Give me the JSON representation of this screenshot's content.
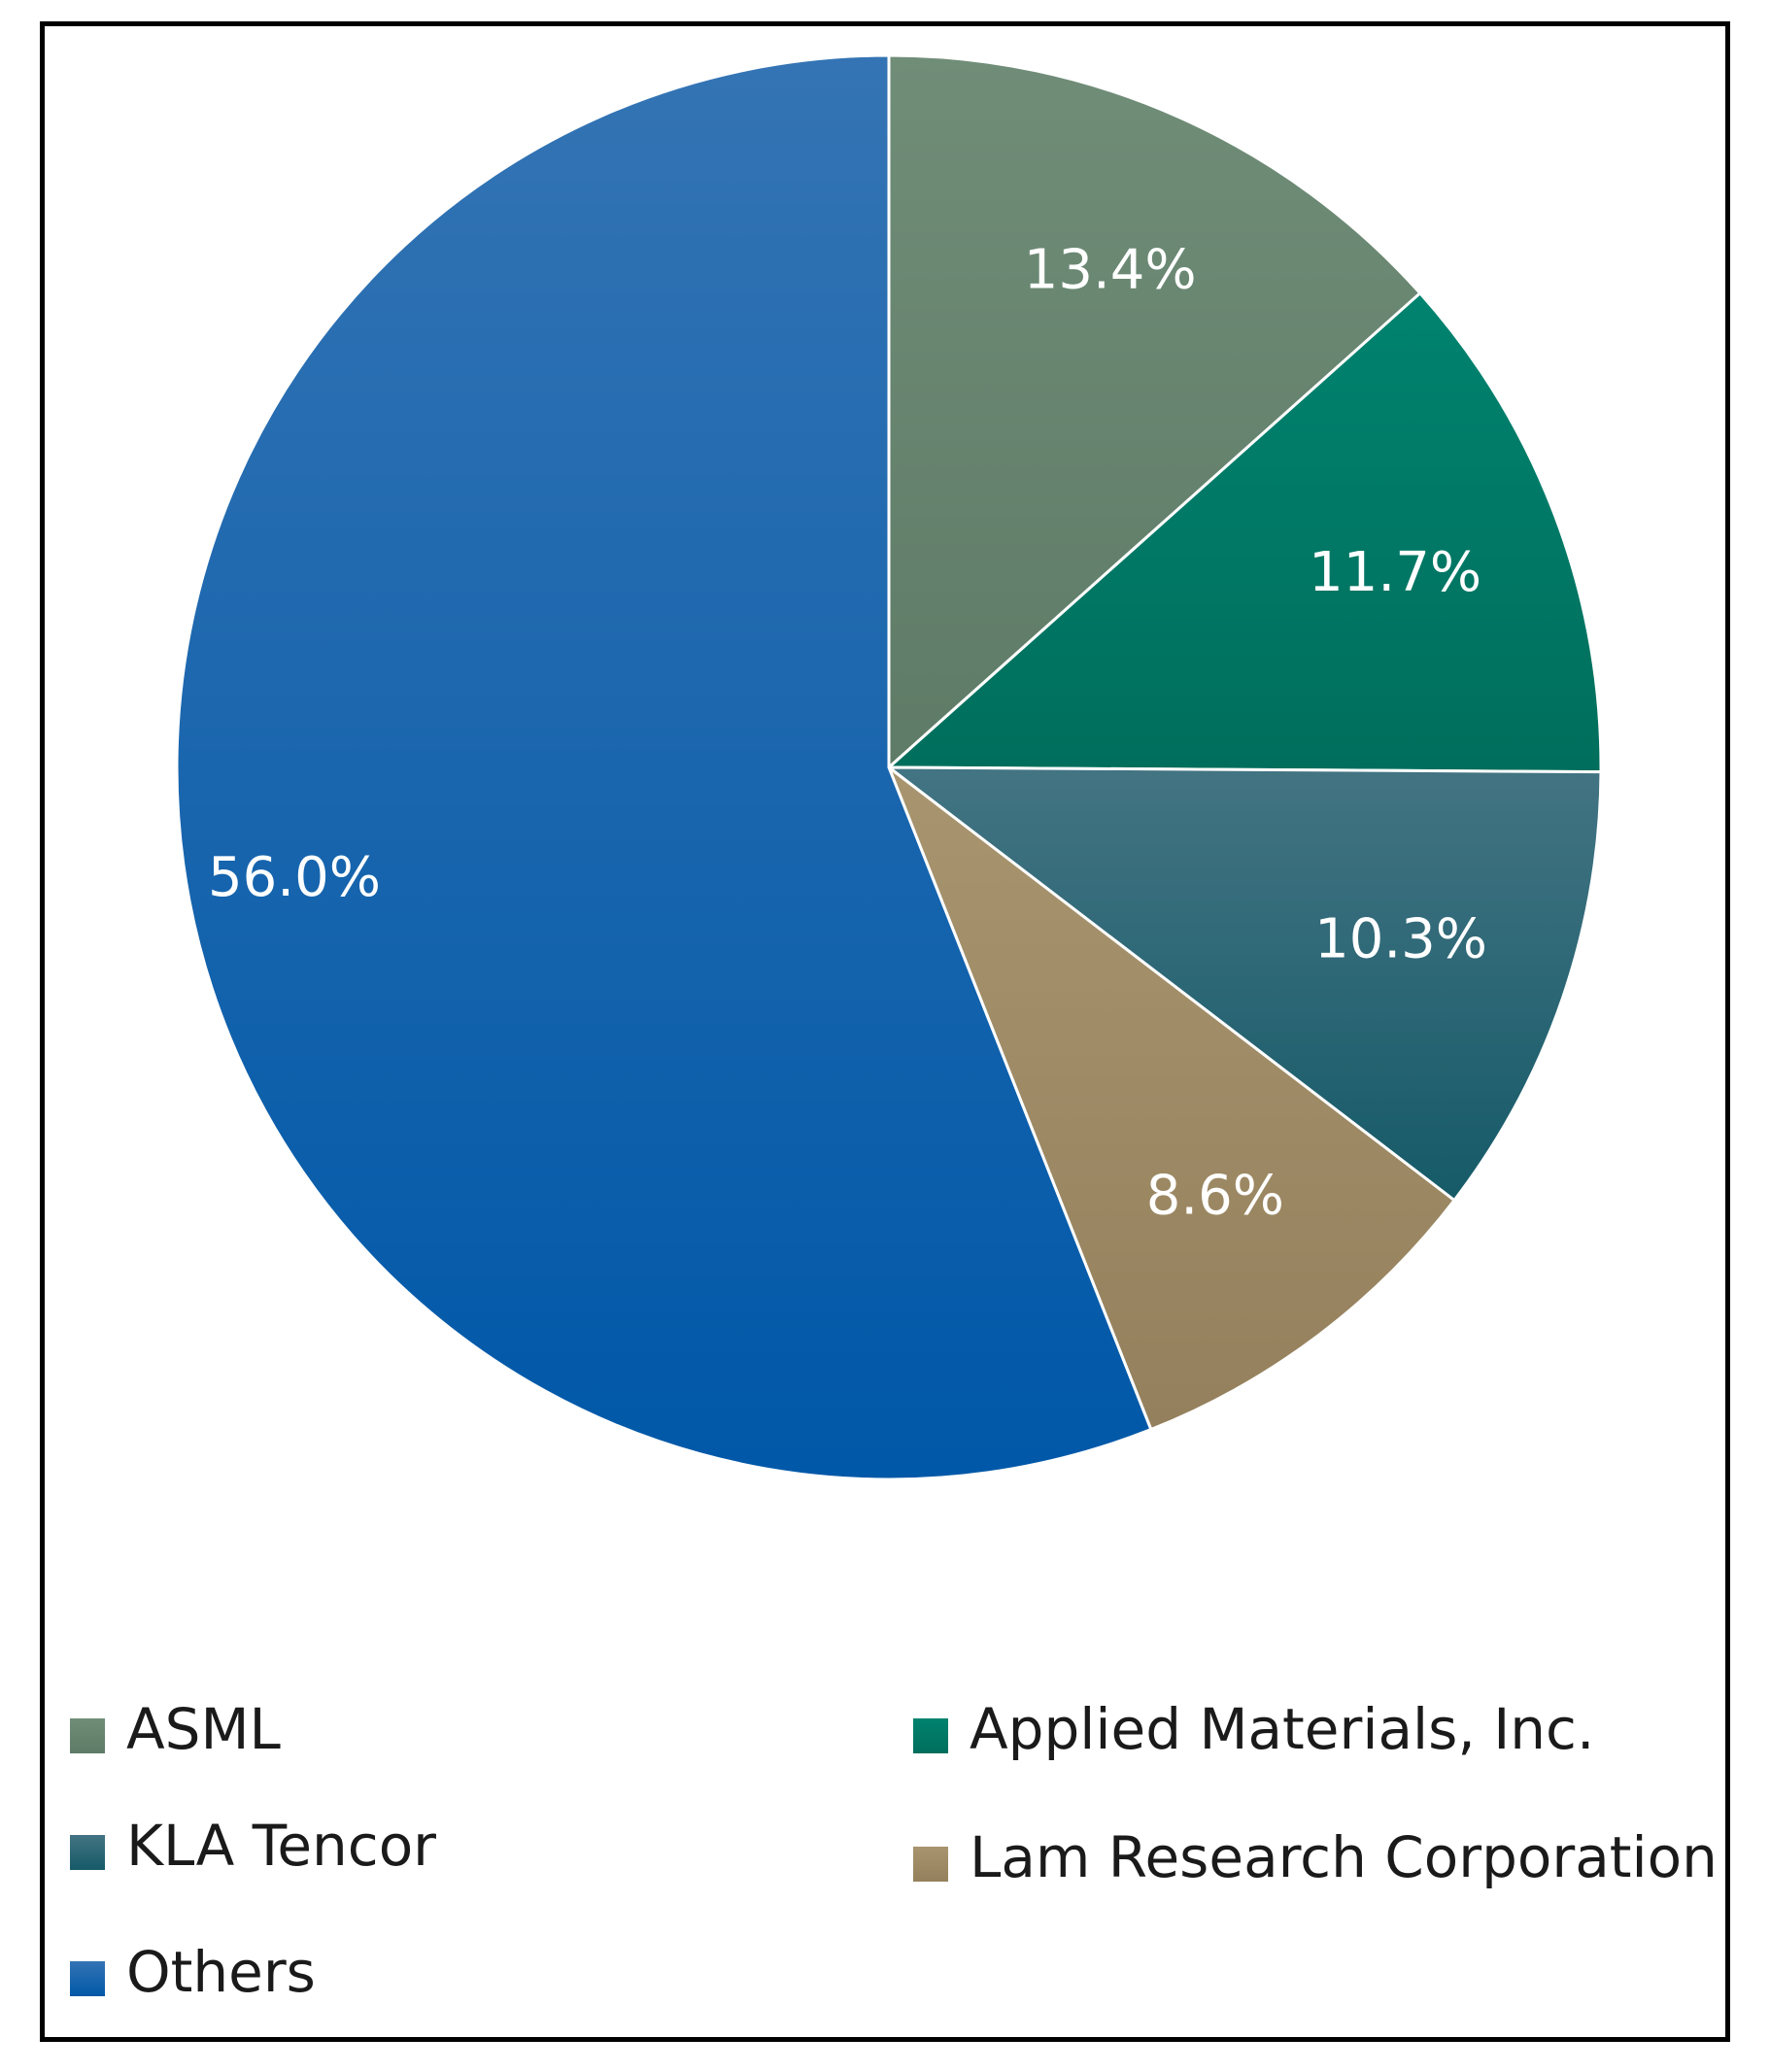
{
  "chart_data": {
    "type": "pie",
    "title": "",
    "slices": [
      {
        "name": "ASML",
        "value": 13.4,
        "label": "13.4%",
        "color": "#5e7b67",
        "color_light": "#708d78"
      },
      {
        "name": "Applied Materials, Inc.",
        "value": 11.7,
        "label": "11.7%",
        "color": "#006e5c",
        "color_light": "#00836f"
      },
      {
        "name": "KLA Tencor",
        "value": 10.3,
        "label": "10.3%",
        "color": "#165a68",
        "color_light": "#437483"
      },
      {
        "name": "Lam Research Corporation",
        "value": 8.6,
        "label": "8.6%",
        "color": "#94805c",
        "color_light": "#a8956f"
      },
      {
        "name": "Others",
        "value": 56.0,
        "label": "56.0%",
        "color": "#0058a8",
        "color_light": "#3474b4"
      }
    ],
    "legend": {
      "position": "bottom",
      "entries": [
        "ASML",
        "Applied Materials, Inc.",
        "KLA Tencor",
        "Lam Research Corporation",
        "Others"
      ]
    }
  }
}
